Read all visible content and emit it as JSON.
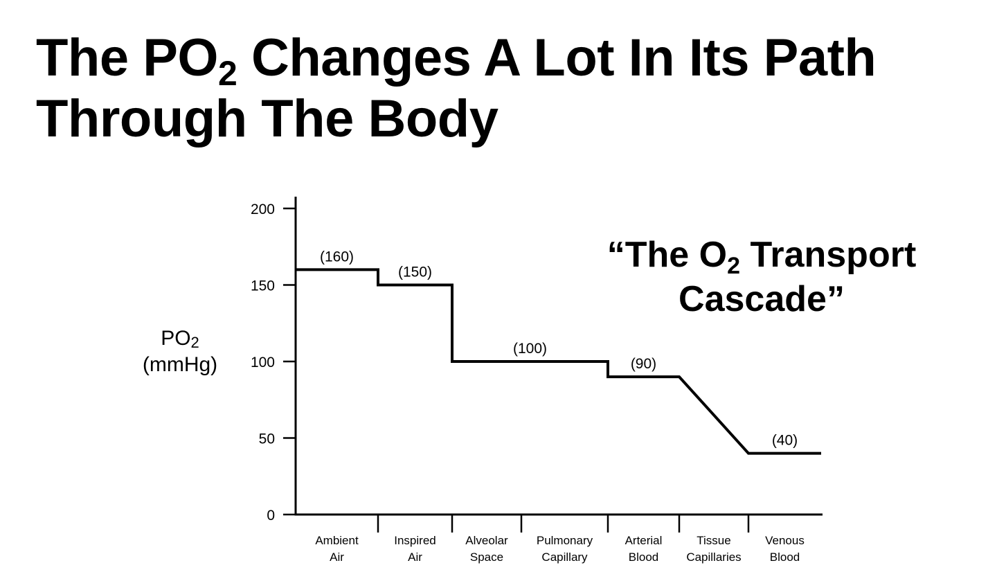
{
  "title": {
    "line1_pre": "The PO",
    "line1_sub": "2",
    "line1_post": " Changes A Lot In Its Path",
    "line2": "Through The Body"
  },
  "annotation": {
    "line1_pre": "“The O",
    "line1_sub": "2",
    "line1_post": " Transport",
    "line2": "Cascade”"
  },
  "chart_data": {
    "type": "line",
    "ylabel": {
      "main": "PO",
      "sub": "2",
      "unit": "(mmHg)"
    },
    "ylim": [
      0,
      200
    ],
    "yticks": [
      0,
      50,
      100,
      150,
      200
    ],
    "grid": false,
    "categories": [
      "Ambient Air",
      "Inspired Air",
      "Alveolar Space",
      "Pulmonary Capillary",
      "Arterial Blood",
      "Tissue Capillaries",
      "Venous Blood"
    ],
    "category_labels": [
      [
        "Ambient",
        "Air"
      ],
      [
        "Inspired",
        "Air"
      ],
      [
        "Alveolar",
        "Space"
      ],
      [
        "Pulmonary",
        "Capillary"
      ],
      [
        "Arterial",
        "Blood"
      ],
      [
        "Tissue",
        "Capillaries"
      ],
      [
        "Venous",
        "Blood"
      ]
    ],
    "segments": [
      {
        "from": 0,
        "to": 1,
        "value": 160,
        "label": "(160)"
      },
      {
        "from": 1,
        "to": 2,
        "value": 150,
        "label": "(150)"
      },
      {
        "from": 2,
        "to": 4,
        "value": 100,
        "label": "(100)"
      },
      {
        "from": 4,
        "to": 5,
        "value": 90,
        "label": "(90)"
      },
      {
        "from": 6,
        "to": 7,
        "value": 40,
        "label": "(40)"
      }
    ],
    "transition": "Tissue Capillaries: linear decline from 90 to 40"
  }
}
